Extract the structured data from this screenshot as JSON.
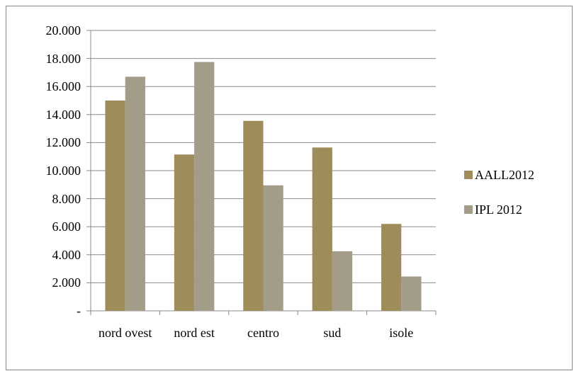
{
  "chart_data": {
    "type": "bar",
    "categories": [
      "nord ovest",
      "nord est",
      "centro",
      "sud",
      "isole"
    ],
    "series": [
      {
        "name": "AALL2012",
        "color": "#9e8c5a",
        "values": [
          15000,
          11150,
          13550,
          11650,
          6200
        ]
      },
      {
        "name": "IPL 2012",
        "color": "#a29c88",
        "values": [
          16700,
          17750,
          8950,
          4250,
          2450
        ]
      }
    ],
    "ylim": [
      0,
      20000
    ],
    "yticks": [
      {
        "value": 0,
        "label": "-"
      },
      {
        "value": 2000,
        "label": "2.000"
      },
      {
        "value": 4000,
        "label": "4.000"
      },
      {
        "value": 6000,
        "label": "6.000"
      },
      {
        "value": 8000,
        "label": "8.000"
      },
      {
        "value": 10000,
        "label": "10.000"
      },
      {
        "value": 12000,
        "label": "12.000"
      },
      {
        "value": 14000,
        "label": "14.000"
      },
      {
        "value": 16000,
        "label": "16.000"
      },
      {
        "value": 18000,
        "label": "18.000"
      },
      {
        "value": 20000,
        "label": "20.000"
      }
    ],
    "grid": true,
    "legend": "right"
  }
}
